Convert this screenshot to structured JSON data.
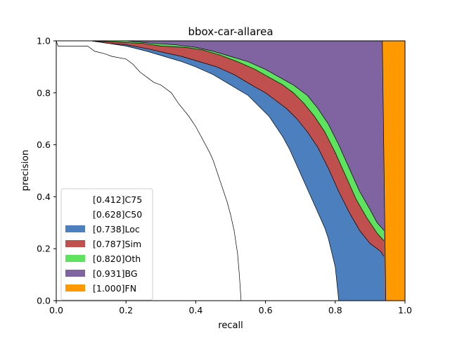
{
  "chart_data": {
    "type": "area",
    "title": "bbox-car-allarea",
    "xlabel": "recall",
    "ylabel": "precision",
    "xlim": [
      0,
      1
    ],
    "ylim": [
      0,
      1
    ],
    "xticks": [
      "0.0",
      "0.2",
      "0.4",
      "0.6",
      "0.8",
      "1.0"
    ],
    "yticks": [
      "0.0",
      "0.2",
      "0.4",
      "0.6",
      "0.8",
      "1.0"
    ],
    "grid": false,
    "legend_position": "lower-left",
    "series": [
      {
        "name": "[0.412]C75",
        "color": "#ffffff",
        "points": [
          [
            0,
            1.0
          ],
          [
            0.005,
            0.98
          ],
          [
            0.04,
            0.98
          ],
          [
            0.09,
            0.98
          ],
          [
            0.11,
            0.96
          ],
          [
            0.14,
            0.95
          ],
          [
            0.16,
            0.94
          ],
          [
            0.2,
            0.93
          ],
          [
            0.22,
            0.91
          ],
          [
            0.24,
            0.88
          ],
          [
            0.26,
            0.86
          ],
          [
            0.28,
            0.84
          ],
          [
            0.3,
            0.83
          ],
          [
            0.33,
            0.8
          ],
          [
            0.35,
            0.76
          ],
          [
            0.38,
            0.71
          ],
          [
            0.4,
            0.67
          ],
          [
            0.42,
            0.62
          ],
          [
            0.44,
            0.57
          ],
          [
            0.45,
            0.54
          ],
          [
            0.46,
            0.5
          ],
          [
            0.47,
            0.46
          ],
          [
            0.48,
            0.42
          ],
          [
            0.49,
            0.38
          ],
          [
            0.5,
            0.33
          ],
          [
            0.51,
            0.27
          ],
          [
            0.52,
            0.18
          ],
          [
            0.525,
            0.1
          ],
          [
            0.53,
            0.0
          ]
        ]
      },
      {
        "name": "[0.628]C50",
        "color": "#ffffff",
        "points": [
          [
            0,
            1.0
          ],
          [
            0.1,
            1.0
          ],
          [
            0.15,
            0.99
          ],
          [
            0.2,
            0.98
          ],
          [
            0.26,
            0.96
          ],
          [
            0.31,
            0.94
          ],
          [
            0.36,
            0.92
          ],
          [
            0.4,
            0.9
          ],
          [
            0.45,
            0.87
          ],
          [
            0.5,
            0.83
          ],
          [
            0.55,
            0.79
          ],
          [
            0.58,
            0.75
          ],
          [
            0.61,
            0.71
          ],
          [
            0.63,
            0.67
          ],
          [
            0.65,
            0.63
          ],
          [
            0.67,
            0.58
          ],
          [
            0.69,
            0.52
          ],
          [
            0.71,
            0.46
          ],
          [
            0.73,
            0.4
          ],
          [
            0.75,
            0.34
          ],
          [
            0.77,
            0.28
          ],
          [
            0.78,
            0.24
          ],
          [
            0.8,
            0.13
          ],
          [
            0.81,
            0.0
          ]
        ]
      },
      {
        "name": "[0.738]Loc",
        "color": "#4c7fbd",
        "points": [
          [
            0,
            1.0
          ],
          [
            0.1,
            1.0
          ],
          [
            0.15,
            0.99
          ],
          [
            0.2,
            0.985
          ],
          [
            0.26,
            0.97
          ],
          [
            0.31,
            0.955
          ],
          [
            0.36,
            0.94
          ],
          [
            0.41,
            0.92
          ],
          [
            0.46,
            0.9
          ],
          [
            0.51,
            0.87
          ],
          [
            0.56,
            0.83
          ],
          [
            0.6,
            0.8
          ],
          [
            0.63,
            0.77
          ],
          [
            0.66,
            0.74
          ],
          [
            0.69,
            0.7
          ],
          [
            0.72,
            0.65
          ],
          [
            0.75,
            0.59
          ],
          [
            0.78,
            0.51
          ],
          [
            0.81,
            0.42
          ],
          [
            0.84,
            0.34
          ],
          [
            0.87,
            0.27
          ],
          [
            0.9,
            0.22
          ],
          [
            0.93,
            0.19
          ],
          [
            0.94,
            0.17
          ]
        ]
      },
      {
        "name": "[0.787]Sim",
        "color": "#c0504d",
        "points": [
          [
            0,
            1.0
          ],
          [
            0.1,
            1.0
          ],
          [
            0.18,
            0.995
          ],
          [
            0.25,
            0.99
          ],
          [
            0.3,
            0.98
          ],
          [
            0.37,
            0.975
          ],
          [
            0.42,
            0.965
          ],
          [
            0.47,
            0.945
          ],
          [
            0.52,
            0.92
          ],
          [
            0.57,
            0.89
          ],
          [
            0.61,
            0.86
          ],
          [
            0.65,
            0.83
          ],
          [
            0.68,
            0.8
          ],
          [
            0.71,
            0.76
          ],
          [
            0.74,
            0.71
          ],
          [
            0.77,
            0.65
          ],
          [
            0.8,
            0.57
          ],
          [
            0.83,
            0.48
          ],
          [
            0.86,
            0.39
          ],
          [
            0.89,
            0.32
          ],
          [
            0.92,
            0.26
          ],
          [
            0.94,
            0.23
          ]
        ]
      },
      {
        "name": "[0.820]Oth",
        "color": "#5de35d",
        "points": [
          [
            0,
            1.0
          ],
          [
            0.1,
            1.0
          ],
          [
            0.2,
            1.0
          ],
          [
            0.28,
            0.99
          ],
          [
            0.34,
            0.985
          ],
          [
            0.4,
            0.975
          ],
          [
            0.45,
            0.96
          ],
          [
            0.5,
            0.94
          ],
          [
            0.55,
            0.92
          ],
          [
            0.6,
            0.89
          ],
          [
            0.64,
            0.86
          ],
          [
            0.68,
            0.83
          ],
          [
            0.72,
            0.79
          ],
          [
            0.75,
            0.74
          ],
          [
            0.78,
            0.68
          ],
          [
            0.81,
            0.6
          ],
          [
            0.84,
            0.51
          ],
          [
            0.87,
            0.42
          ],
          [
            0.9,
            0.35
          ],
          [
            0.92,
            0.3
          ],
          [
            0.94,
            0.27
          ]
        ]
      },
      {
        "name": "[0.931]BG",
        "color": "#8064a2",
        "points": [
          [
            0,
            1.0
          ],
          [
            0.935,
            1.0
          ],
          [
            0.94,
            0.5
          ],
          [
            0.945,
            0.0
          ]
        ]
      },
      {
        "name": "[1.000]FN",
        "color": "#ff9900",
        "points": [
          [
            0,
            1.0
          ],
          [
            1.0,
            1.0
          ]
        ]
      }
    ]
  }
}
